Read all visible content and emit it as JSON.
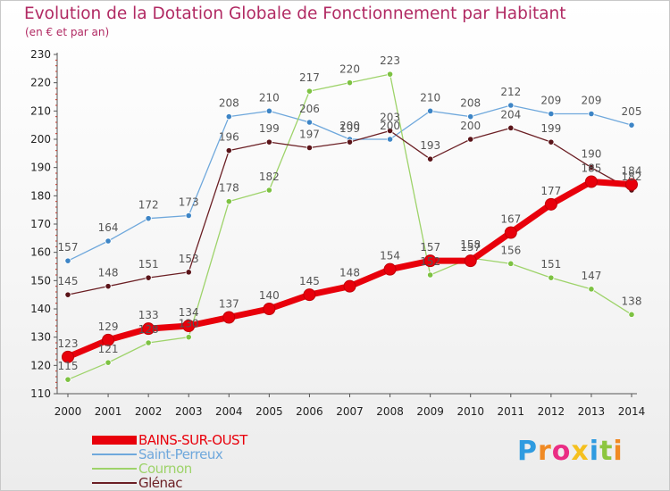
{
  "title": "Evolution de la Dotation Globale de Fonctionnement par Habitant",
  "subtitle": "(en € et par an)",
  "logo": {
    "text": "Proxiti",
    "colors": [
      "#2f9be0",
      "#f08a24",
      "#ea2d84",
      "#f5c01e",
      "#2f9be0",
      "#8cc63f",
      "#f08a24"
    ]
  },
  "colors": {
    "title": "#b12a63"
  },
  "chart_data": {
    "type": "line",
    "title": "Evolution de la Dotation Globale de Fonctionnement par Habitant",
    "subtitle": "(en € et par an)",
    "x": [
      "2000",
      "2001",
      "2002",
      "2003",
      "2004",
      "2005",
      "2006",
      "2007",
      "2008",
      "2009",
      "2010",
      "2011",
      "2012",
      "2013",
      "2014"
    ],
    "ylim": [
      110,
      230
    ],
    "yticks": [
      110,
      120,
      130,
      140,
      150,
      160,
      170,
      180,
      190,
      200,
      210,
      220,
      230
    ],
    "grid": false,
    "legend": "bottom-left",
    "series": [
      {
        "name": "BAINS-SUR-OUST",
        "color": "#e8000b",
        "marker": "#e8000b",
        "values": [
          123,
          129,
          133,
          134,
          137,
          140,
          145,
          148,
          154,
          157,
          157,
          167,
          177,
          185,
          184
        ]
      },
      {
        "name": "Saint-Perreux",
        "color": "#6fa8dc",
        "marker": "#3d85c6",
        "values": [
          157,
          164,
          172,
          173,
          208,
          210,
          206,
          200,
          200,
          210,
          208,
          212,
          209,
          209,
          205
        ]
      },
      {
        "name": "Cournon",
        "color": "#9ed36a",
        "marker": "#7dc242",
        "values": [
          115,
          121,
          128,
          130,
          178,
          182,
          217,
          220,
          223,
          152,
          158,
          156,
          151,
          147,
          138
        ]
      },
      {
        "name": "Glénac",
        "color": "#6b1f24",
        "marker": "#5a1419",
        "values": [
          145,
          148,
          151,
          153,
          196,
          199,
          197,
          199,
          203,
          193,
          200,
          204,
          199,
          190,
          182
        ]
      }
    ]
  }
}
